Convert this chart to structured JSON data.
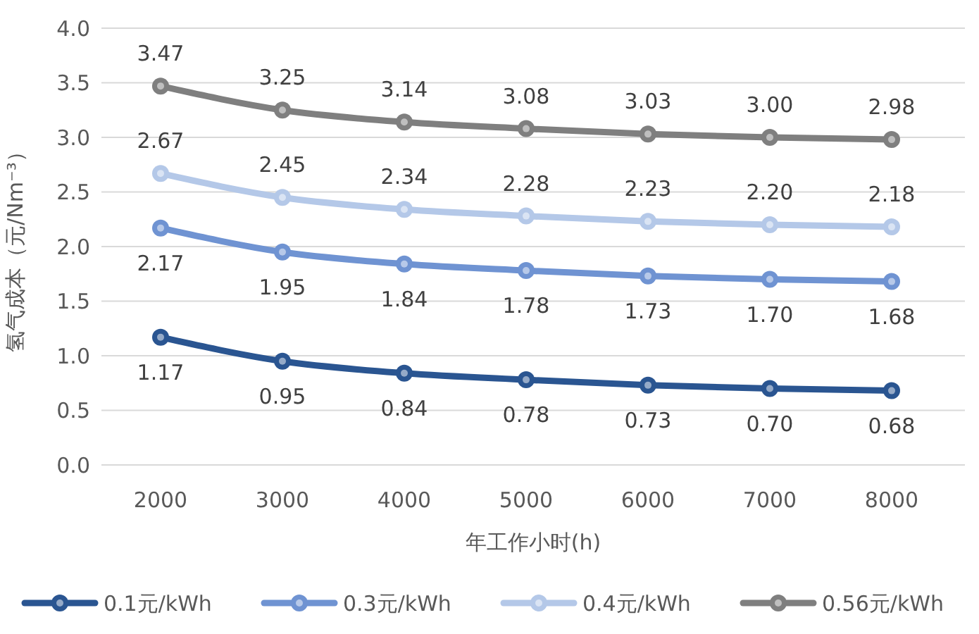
{
  "chart_data": {
    "type": "line",
    "xlabel": "年工作小时(h)",
    "ylabel": "氢气成本（元/Nm⁻³）",
    "categories": [
      "2000",
      "3000",
      "4000",
      "5000",
      "6000",
      "7000",
      "8000"
    ],
    "series": [
      {
        "name": "0.1元/kWh",
        "color": "#2a5591",
        "values": [
          1.17,
          0.95,
          0.84,
          0.78,
          0.73,
          0.7,
          0.68
        ],
        "value_labels": [
          "1.17",
          "0.95",
          "0.84",
          "0.78",
          "0.73",
          "0.70",
          "0.68"
        ]
      },
      {
        "name": "0.3元/kWh",
        "color": "#6f93d2",
        "values": [
          2.17,
          1.95,
          1.84,
          1.78,
          1.73,
          1.7,
          1.68
        ],
        "value_labels": [
          "2.17",
          "1.95",
          "1.84",
          "1.78",
          "1.73",
          "1.70",
          "1.68"
        ]
      },
      {
        "name": "0.4元/kWh",
        "color": "#b4c8e8",
        "values": [
          2.67,
          2.45,
          2.34,
          2.28,
          2.23,
          2.2,
          2.18
        ],
        "value_labels": [
          "2.67",
          "2.45",
          "2.34",
          "2.28",
          "2.23",
          "2.20",
          "2.18"
        ]
      },
      {
        "name": "0.56元/kWh",
        "color": "#7f7f7f",
        "values": [
          3.47,
          3.25,
          3.14,
          3.08,
          3.03,
          3.0,
          2.98
        ],
        "value_labels": [
          "3.47",
          "3.25",
          "3.14",
          "3.08",
          "3.03",
          "3.00",
          "2.98"
        ]
      }
    ],
    "ylim": [
      0,
      4
    ],
    "yticks": [
      {
        "value": 0,
        "label": "0.0"
      },
      {
        "value": 0.5,
        "label": "0.5"
      },
      {
        "value": 1,
        "label": "1.0"
      },
      {
        "value": 1.5,
        "label": "1.5"
      },
      {
        "value": 2,
        "label": "2.0"
      },
      {
        "value": 2.5,
        "label": "2.5"
      },
      {
        "value": 3,
        "label": "3.0"
      },
      {
        "value": 3.5,
        "label": "3.5"
      },
      {
        "value": 4,
        "label": "4.0"
      }
    ],
    "grid": "y",
    "legend": "bottom",
    "marker": "circle",
    "line_style": "solid"
  }
}
